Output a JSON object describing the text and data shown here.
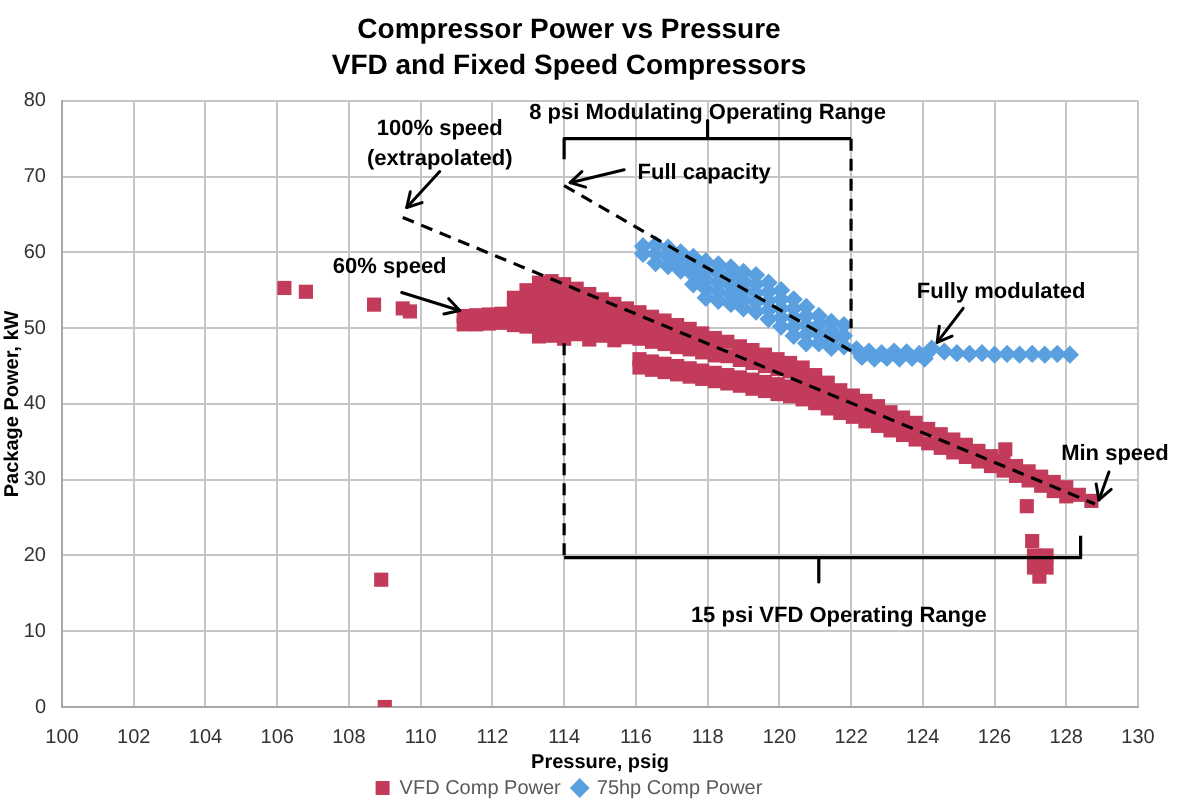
{
  "chart_data": {
    "type": "scatter",
    "title": "Compressor Power vs Pressure\nVFD and Fixed Speed Compressors",
    "xlabel": "Pressure, psig",
    "ylabel": "Package Power, kW",
    "xlim": [
      100,
      130
    ],
    "xticks": [
      100,
      102,
      104,
      106,
      108,
      110,
      112,
      114,
      116,
      118,
      120,
      122,
      124,
      126,
      128,
      130
    ],
    "ylim": [
      0,
      80
    ],
    "yticks": [
      0,
      10,
      20,
      30,
      40,
      50,
      60,
      70,
      80
    ],
    "grid": true,
    "legend": "bottom",
    "series": [
      {
        "name": "VFD Comp Power",
        "color": "#c23b5b",
        "marker": "square",
        "x": [
          106.2,
          106.8,
          108.7,
          109.5,
          109.7,
          108.9,
          109.0,
          111.2,
          111.2,
          111.55,
          111.55,
          111.9,
          111.9,
          112.25,
          112.25,
          112.6,
          112.6,
          112.6,
          112.6,
          112.95,
          112.95,
          112.95,
          112.95,
          112.95,
          113.3,
          113.3,
          113.3,
          113.3,
          113.3,
          113.3,
          113.3,
          113.65,
          113.65,
          113.65,
          113.65,
          113.65,
          113.65,
          113.65,
          114.0,
          114.0,
          114.0,
          114.0,
          114.0,
          114.0,
          114.0,
          114.35,
          114.35,
          114.35,
          114.35,
          114.35,
          114.35,
          114.7,
          114.7,
          114.7,
          114.7,
          114.7,
          114.7,
          115.05,
          115.05,
          115.05,
          115.05,
          115.05,
          115.4,
          115.4,
          115.4,
          115.4,
          115.4,
          115.75,
          115.75,
          115.75,
          115.75,
          116.1,
          116.1,
          116.1,
          116.1,
          116.45,
          116.45,
          116.45,
          116.45,
          116.8,
          116.8,
          116.8,
          117.15,
          117.15,
          117.15,
          117.5,
          117.5,
          117.5,
          117.85,
          117.85,
          117.85,
          118.2,
          118.2,
          118.2,
          118.55,
          118.55,
          118.9,
          118.9,
          119.25,
          119.25,
          119.6,
          119.6,
          119.95,
          119.95,
          120.3,
          120.3,
          116.1,
          116.1,
          116.45,
          116.45,
          116.8,
          116.8,
          117.15,
          117.15,
          117.5,
          117.5,
          117.85,
          117.85,
          118.2,
          118.2,
          118.55,
          118.55,
          118.9,
          118.9,
          119.25,
          119.25,
          119.6,
          119.6,
          119.95,
          119.95,
          120.3,
          120.3,
          120.65,
          120.65,
          120.65,
          120.65,
          121.0,
          121.0,
          121.0,
          121.0,
          121.35,
          121.35,
          121.35,
          121.35,
          121.7,
          121.7,
          121.7,
          122.05,
          122.05,
          122.05,
          122.4,
          122.4,
          122.4,
          122.75,
          122.75,
          122.75,
          123.1,
          123.1,
          123.1,
          123.45,
          123.45,
          123.45,
          123.8,
          123.8,
          123.8,
          124.15,
          124.15,
          124.5,
          124.5,
          124.85,
          124.85,
          125.2,
          125.2,
          125.55,
          125.55,
          125.9,
          125.9,
          126.25,
          126.25,
          126.6,
          126.6,
          126.95,
          126.95,
          127.3,
          127.3,
          127.65,
          127.65,
          128.0,
          128.0,
          128.35,
          128.7,
          126.3,
          126.9,
          127.05,
          127.1,
          127.45,
          127.1,
          127.45,
          127.25
        ],
        "values": [
          55.3,
          54.8,
          53.1,
          52.6,
          52.2,
          16.8,
          0,
          51.6,
          50.5,
          51.7,
          50.5,
          51.8,
          50.6,
          51.9,
          50.7,
          54.0,
          52.8,
          51.6,
          50.4,
          55.0,
          53.8,
          52.6,
          51.4,
          50.2,
          56.0,
          54.8,
          53.6,
          52.4,
          51.2,
          50.0,
          48.9,
          56.2,
          55.0,
          53.8,
          52.6,
          51.4,
          50.2,
          49.0,
          55.8,
          54.6,
          53.4,
          52.2,
          51.0,
          49.8,
          48.6,
          55.2,
          54.0,
          52.8,
          51.6,
          50.4,
          49.2,
          54.5,
          53.3,
          52.1,
          50.9,
          49.7,
          48.5,
          53.8,
          52.6,
          51.4,
          50.2,
          49.0,
          53.2,
          52.0,
          50.8,
          49.6,
          48.4,
          52.6,
          51.4,
          50.1,
          48.8,
          52.1,
          50.9,
          49.8,
          48.6,
          51.5,
          50.4,
          49.3,
          48.2,
          51.0,
          49.4,
          47.9,
          50.4,
          49.0,
          47.5,
          49.9,
          48.5,
          47.2,
          49.3,
          48.0,
          46.8,
          48.7,
          47.6,
          46.4,
          48.2,
          46.3,
          47.6,
          45.8,
          47.1,
          45.4,
          46.5,
          45.0,
          45.9,
          44.6,
          45.4,
          44.3,
          45.9,
          44.8,
          45.6,
          44.5,
          45.3,
          44.2,
          45.0,
          43.9,
          44.7,
          43.6,
          44.4,
          43.3,
          44.1,
          43.0,
          43.8,
          42.7,
          43.5,
          42.4,
          43.2,
          42.0,
          42.9,
          41.7,
          42.6,
          41.3,
          42.3,
          41.0,
          44.8,
          43.4,
          42.0,
          40.6,
          43.8,
          42.6,
          41.4,
          40.1,
          42.8,
          41.6,
          40.5,
          39.4,
          41.8,
          40.3,
          38.8,
          41.1,
          39.7,
          38.3,
          40.4,
          39.0,
          37.7,
          39.7,
          38.4,
          37.1,
          38.9,
          37.7,
          36.5,
          38.2,
          37.0,
          35.9,
          37.5,
          36.4,
          35.3,
          36.7,
          34.8,
          36.0,
          34.2,
          35.3,
          33.6,
          34.6,
          33.0,
          33.8,
          32.4,
          33.1,
          31.8,
          32.4,
          31.2,
          31.8,
          30.5,
          31.1,
          29.9,
          30.4,
          29.2,
          29.7,
          28.5,
          29.0,
          27.8,
          28.0,
          27.2,
          34.0,
          26.5,
          21.9,
          20.0,
          20.0,
          18.4,
          18.4,
          17.2
        ]
      },
      {
        "name": "75hp Comp Power",
        "color": "#5aa0e0",
        "marker": "diamond",
        "x": [
          116.2,
          116.2,
          116.55,
          116.55,
          116.55,
          116.9,
          116.9,
          116.9,
          117.25,
          117.25,
          117.25,
          117.6,
          117.6,
          117.6,
          117.6,
          117.95,
          117.95,
          117.95,
          117.95,
          117.95,
          118.3,
          118.3,
          118.3,
          118.3,
          118.3,
          118.65,
          118.65,
          118.65,
          118.65,
          118.65,
          119.0,
          119.0,
          119.0,
          119.0,
          119.0,
          119.35,
          119.35,
          119.35,
          119.35,
          119.35,
          119.7,
          119.7,
          119.7,
          119.7,
          119.7,
          120.05,
          120.05,
          120.05,
          120.05,
          120.05,
          120.4,
          120.4,
          120.4,
          120.4,
          120.4,
          120.75,
          120.75,
          120.75,
          120.75,
          120.75,
          121.1,
          121.1,
          121.1,
          121.1,
          121.45,
          121.45,
          121.45,
          121.45,
          121.8,
          121.8,
          121.8,
          122.15,
          122.5,
          122.85,
          123.2,
          123.55,
          123.9,
          124.25,
          124.6,
          124.95,
          125.3,
          125.65,
          126.0,
          126.35,
          126.7,
          127.05,
          127.4,
          127.75,
          128.1,
          122.3,
          122.65,
          123.0,
          123.35,
          123.7,
          124.05
        ],
        "values": [
          60.8,
          59.8,
          61.0,
          59.8,
          58.6,
          60.6,
          59.4,
          58.2,
          60.0,
          58.8,
          57.6,
          59.4,
          58.2,
          57.0,
          55.8,
          58.8,
          57.6,
          56.4,
          55.2,
          54.0,
          58.4,
          57.2,
          56.0,
          54.8,
          53.6,
          58.0,
          56.8,
          55.6,
          54.4,
          53.2,
          57.4,
          56.2,
          55.0,
          53.8,
          52.6,
          57.0,
          55.8,
          54.6,
          53.4,
          52.2,
          56.0,
          54.8,
          53.6,
          52.4,
          51.2,
          55.0,
          53.8,
          52.6,
          51.4,
          50.2,
          53.8,
          52.6,
          51.4,
          50.2,
          49.0,
          52.8,
          51.6,
          50.4,
          49.2,
          48.0,
          51.6,
          50.4,
          49.2,
          48.0,
          50.8,
          49.6,
          48.4,
          47.4,
          50.4,
          49.0,
          47.6,
          47.2,
          46.9,
          46.7,
          46.9,
          46.8,
          46.6,
          47.3,
          46.9,
          46.7,
          46.6,
          46.7,
          46.5,
          46.6,
          46.5,
          46.6,
          46.5,
          46.6,
          46.5,
          46.2,
          46.0,
          46.1,
          46.0,
          46.1,
          46.0
        ]
      },
      {
        "type": "line",
        "color": "#000000",
        "line_style": "dashed",
        "marker": "none",
        "x": [
          109.5,
          128.8
        ],
        "values": [
          64.6,
          26.8
        ]
      },
      {
        "type": "line",
        "color": "#000000",
        "line_style": "dashed",
        "marker": "none",
        "x": [
          114.0,
          122.0
        ],
        "values": [
          68.8,
          47.0
        ]
      },
      {
        "type": "line",
        "color": "#000000",
        "line_style": "solid",
        "marker": "none",
        "x": [
          114,
          114,
          118,
          118,
          118,
          122
        ],
        "values": [
          72.3,
          75.0,
          75.0,
          77.4,
          75.0,
          75.0
        ]
      },
      {
        "type": "line",
        "color": "#000000",
        "line_style": "dashed",
        "marker": "none",
        "x": [
          122,
          122
        ],
        "values": [
          75.0,
          50.0
        ]
      },
      {
        "type": "line",
        "color": "#000000",
        "line_style": "solid",
        "marker": "none",
        "x": [
          114,
          121.1,
          121.1,
          121.1,
          128.4,
          128.4
        ],
        "values": [
          19.7,
          19.7,
          16.5,
          19.7,
          19.7,
          22.6
        ]
      },
      {
        "type": "line",
        "color": "#000000",
        "line_style": "dashed",
        "marker": "none",
        "x": [
          114,
          114
        ],
        "values": [
          48.0,
          19.7
        ]
      }
    ],
    "annotations": [
      {
        "text": "100% speed\n(extrapolated)",
        "x": 109.5,
        "y": 64.6
      },
      {
        "text": "Full capacity",
        "x": 114.0,
        "y": 68.8
      },
      {
        "text": "60% speed",
        "x": 111.2,
        "y": 51.8
      },
      {
        "text": "Fully modulated",
        "x": 124.4,
        "y": 47.6
      },
      {
        "text": "Min speed",
        "x": 128.8,
        "y": 26.8
      },
      {
        "text": "8 psi Modulating Operating Range",
        "x": 118,
        "y": 77.4
      },
      {
        "text": "15 psi VFD Operating Range",
        "x": 121.1,
        "y": 16.5
      }
    ]
  }
}
